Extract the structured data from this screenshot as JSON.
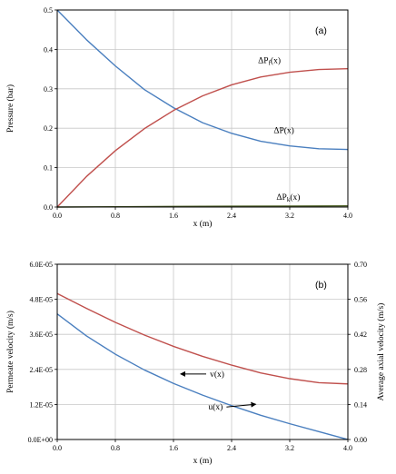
{
  "chart_data": [
    {
      "type": "line",
      "panel_label": "(a)",
      "xlabel": "x (m)",
      "ylabel": "Pressure (bar)",
      "xlim": [
        0,
        4.0
      ],
      "ylim": [
        0,
        0.5
      ],
      "x_ticks": [
        "0.0",
        "0.8",
        "1.6",
        "2.4",
        "3.2",
        "4.0"
      ],
      "y_ticks": [
        "0.0",
        "0.1",
        "0.2",
        "0.3",
        "0.4",
        "0.5"
      ],
      "grid": true,
      "annotations": [
        {
          "id": "dpf",
          "main": "ΔP",
          "sub": "f",
          "tail": "(x)",
          "x": 2.92,
          "y": 0.365
        },
        {
          "id": "dp",
          "main": "ΔP(x)",
          "sub": "",
          "tail": "",
          "x": 3.12,
          "y": 0.188
        },
        {
          "id": "dpk",
          "main": "ΔP",
          "sub": "k",
          "tail": "(x)",
          "x": 3.18,
          "y": 0.018
        }
      ],
      "series": [
        {
          "color": "#4a7fbf",
          "x": [
            0,
            0.4,
            0.8,
            1.2,
            1.6,
            2.0,
            2.4,
            2.8,
            3.2,
            3.6,
            4.0
          ],
          "y": [
            0.5,
            0.425,
            0.358,
            0.298,
            0.252,
            0.214,
            0.187,
            0.167,
            0.155,
            0.148,
            0.146
          ]
        },
        {
          "color": "#c0504d",
          "x": [
            0,
            0.4,
            0.8,
            1.2,
            1.6,
            2.0,
            2.4,
            2.8,
            3.2,
            3.6,
            4.0
          ],
          "y": [
            0.0,
            0.077,
            0.143,
            0.199,
            0.245,
            0.282,
            0.31,
            0.33,
            0.342,
            0.349,
            0.351
          ]
        },
        {
          "color": "#4f6228",
          "x": [
            0,
            0.8,
            1.6,
            2.4,
            3.2,
            4.0
          ],
          "y": [
            0.0,
            0.0008,
            0.0015,
            0.002,
            0.0025,
            0.003
          ]
        }
      ]
    },
    {
      "type": "line",
      "panel_label": "(b)",
      "xlabel": "x (m)",
      "ylabel": "Permeate velocity (m/s)",
      "ylabel_right": "Average axial velocity (m/s)",
      "xlim": [
        0,
        4.0
      ],
      "ylim": [
        0,
        6e-05
      ],
      "ylim_right": [
        0,
        0.7
      ],
      "x_ticks": [
        "0.0",
        "0.8",
        "1.6",
        "2.4",
        "3.2",
        "4.0"
      ],
      "y_ticks": [
        "0.0E+00",
        "1.2E-05",
        "2.4E-05",
        "3.6E-05",
        "4.8E-05",
        "6.0E-05"
      ],
      "y_ticks_right": [
        "0.00",
        "0.14",
        "0.28",
        "0.42",
        "0.56",
        "0.70"
      ],
      "grid": true,
      "annotations": [
        {
          "id": "v",
          "text": "v(x)",
          "x": 2.2,
          "y": 2.15e-05,
          "arrow": "left"
        },
        {
          "id": "u",
          "text": "u(x)",
          "x": 2.18,
          "y": 1.02e-05,
          "arrow": "right"
        }
      ],
      "series": [
        {
          "color": "#c0504d",
          "axis": "right",
          "x": [
            0,
            0.4,
            0.8,
            1.2,
            1.6,
            2.0,
            2.4,
            2.8,
            3.2,
            3.6,
            4.0
          ],
          "y": [
            0.583,
            0.524,
            0.468,
            0.417,
            0.372,
            0.332,
            0.297,
            0.266,
            0.243,
            0.227,
            0.222
          ]
        },
        {
          "color": "#4a7fbf",
          "axis": "left",
          "x": [
            0,
            0.4,
            0.8,
            1.2,
            1.6,
            2.0,
            2.4,
            2.8,
            3.2,
            3.6,
            4.0
          ],
          "y": [
            4.3e-05,
            3.55e-05,
            2.92e-05,
            2.38e-05,
            1.92e-05,
            1.52e-05,
            1.16e-05,
            8.3e-06,
            5.4e-06,
            2.7e-06,
            0.0
          ]
        }
      ]
    }
  ]
}
